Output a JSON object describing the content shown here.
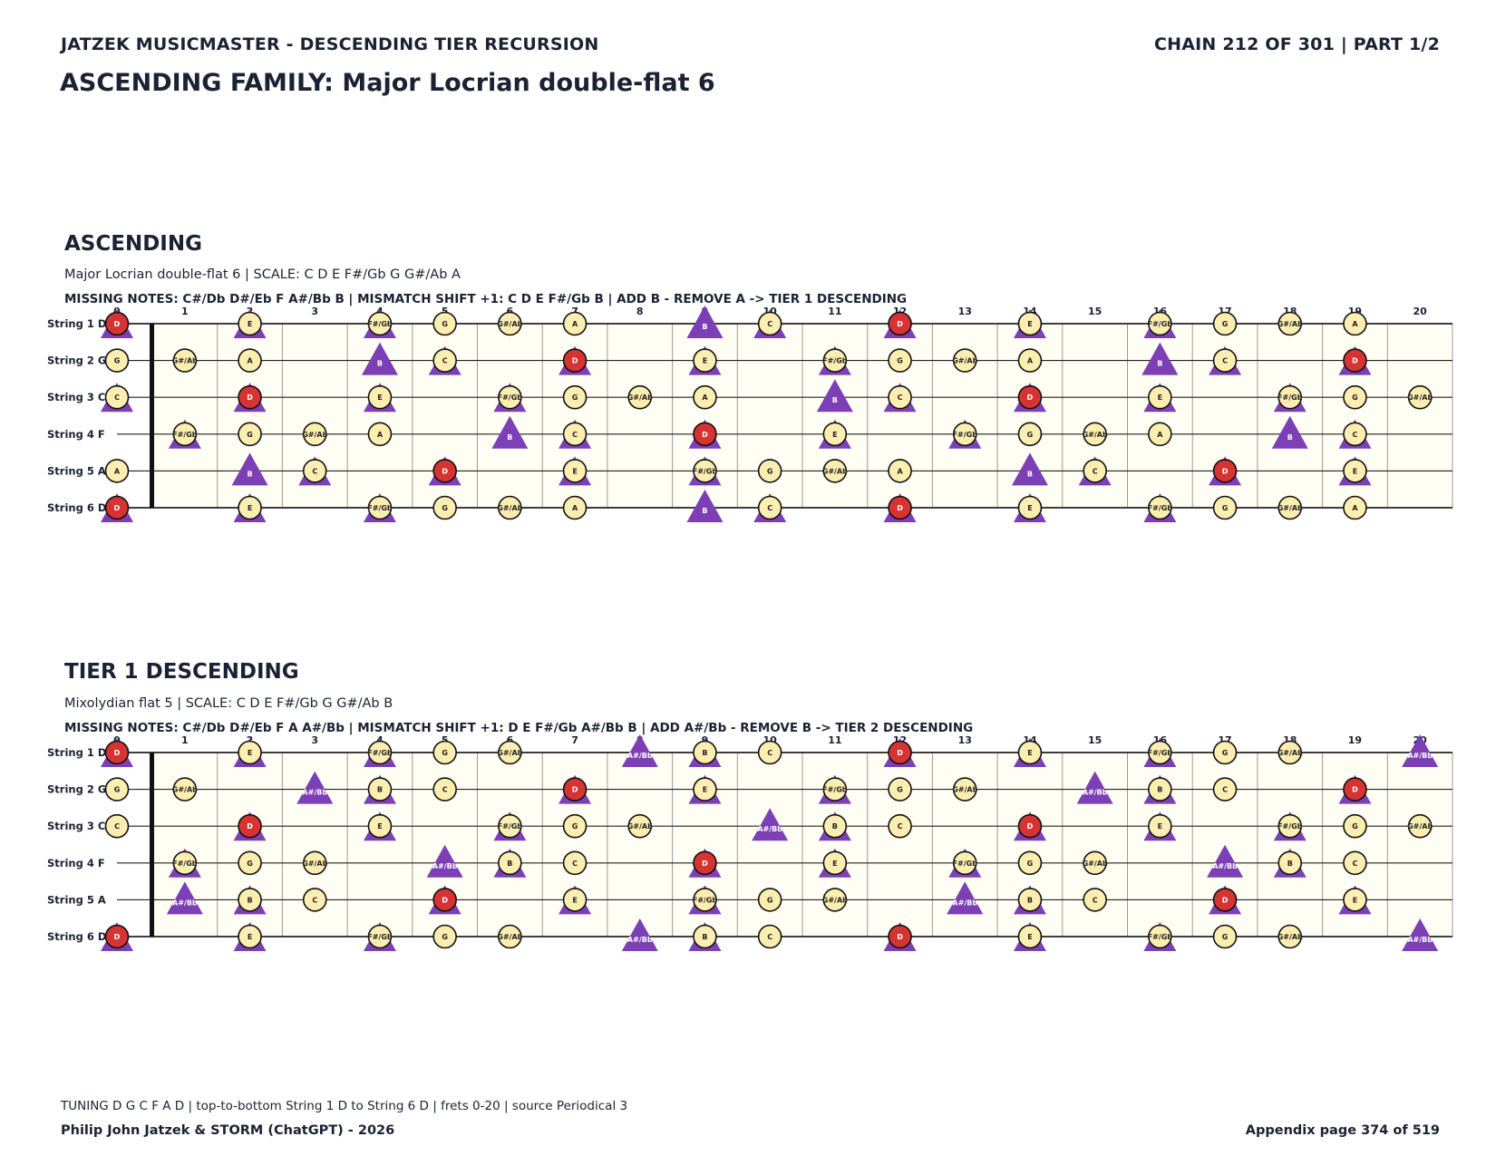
{
  "header": {
    "left": "JATZEK MUSICMASTER - DESCENDING TIER RECURSION",
    "right": "CHAIN 212 OF 301  |  PART 1/2",
    "title": "ASCENDING FAMILY: Major Locrian double-flat 6"
  },
  "colors": {
    "note_fill": "#fbeeb0",
    "root_fill": "#d63333",
    "marker_fill": "#7c3fb5",
    "fret_bg": "#fffef4"
  },
  "icons": {
    "note": "circle",
    "root": "red-circle",
    "marker": "triangle"
  },
  "tuning": [
    "D",
    "G",
    "C",
    "F",
    "A",
    "D"
  ],
  "frets": [
    "0",
    "1",
    "2",
    "3",
    "4",
    "5",
    "6",
    "7",
    "8",
    "9",
    "10",
    "11",
    "12",
    "13",
    "14",
    "15",
    "16",
    "17",
    "18",
    "19",
    "20"
  ],
  "sections": [
    {
      "heading": "ASCENDING",
      "subtitle": "Major Locrian double-flat 6  |  SCALE: C D E F#/Gb G G#/Ab A",
      "missing": "MISSING NOTES: C#/Db D#/Eb F A#/Bb B  |  MISMATCH SHIFT +1: C D E F#/Gb B  |  ADD B - REMOVE A -> TIER 1 DESCENDING",
      "string_labels": [
        "String 1 D",
        "String 2 G",
        "String 3 C",
        "String 4 F",
        "String 5 A",
        "String 6 D"
      ],
      "root": "D",
      "scale": [
        "C",
        "D",
        "E",
        "F#/Gb",
        "G",
        "G#/Ab",
        "A"
      ],
      "triangles": [
        "C",
        "D",
        "E",
        "F#/Gb",
        "B"
      ],
      "filled_triangle": "B"
    },
    {
      "heading": "TIER 1 DESCENDING",
      "subtitle": "Mixolydian flat 5  |  SCALE: C D E F#/Gb G G#/Ab B",
      "missing": "MISSING NOTES: C#/Db D#/Eb F A A#/Bb  |  MISMATCH SHIFT +1: D E F#/Gb A#/Bb B  |  ADD A#/Bb - REMOVE B -> TIER 2 DESCENDING",
      "string_labels": [
        "String 1 D",
        "String 2 G",
        "String 3 C",
        "String 4 F",
        "String 5 A",
        "String 6 D"
      ],
      "root": "D",
      "scale": [
        "C",
        "D",
        "E",
        "F#/Gb",
        "G",
        "G#/Ab",
        "B"
      ],
      "triangles": [
        "D",
        "E",
        "F#/Gb",
        "A#/Bb",
        "B"
      ],
      "filled_triangle": "A#/Bb"
    }
  ],
  "footer": {
    "tuning_line": "TUNING D G C F A D | top-to-bottom String 1 D to String 6 D | frets 0-20 | source Periodical 3",
    "credit": "Philip John Jatzek & STORM (ChatGPT) - 2026",
    "page": "Appendix page 374 of 519"
  }
}
